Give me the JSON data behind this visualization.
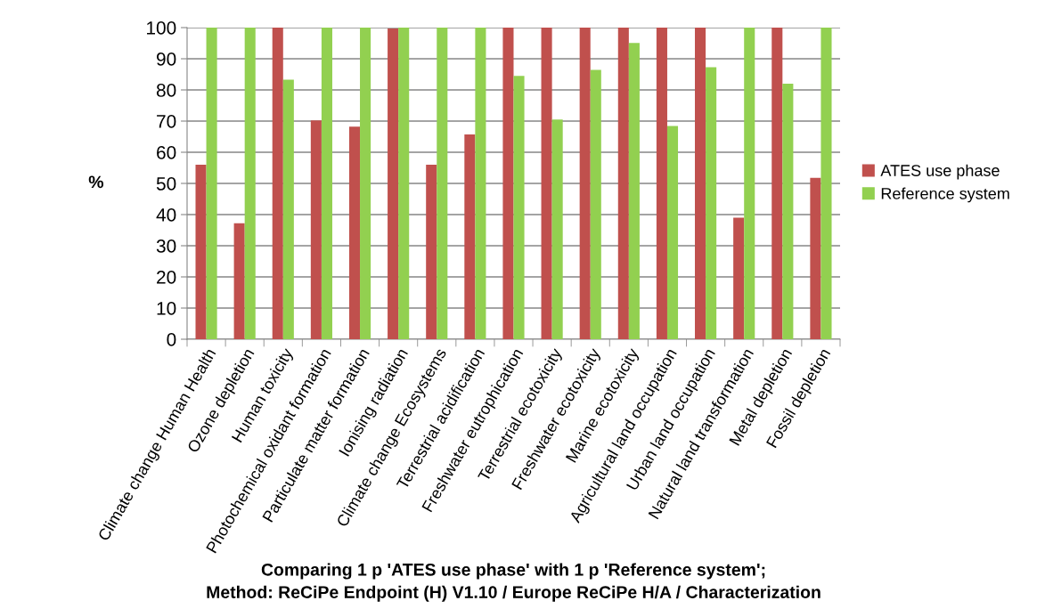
{
  "chart_data": {
    "type": "bar",
    "xlabel": "Comparing 1 p 'ATES use phase' with 1 p 'Reference system';\nMethod: ReCiPe Endpoint (H) V1.10 / Europe ReCiPe H/A / Characterization",
    "ylabel": "%",
    "categories": [
      "Climate change Human Health",
      "Ozone depletion",
      "Human toxicity",
      "Photochemical oxidant formation",
      "Particulate matter formation",
      "Ionising radiation",
      "Climate change Ecosystems",
      "Terrestrial acidification",
      "Freshwater eutrophication",
      "Terrestrial ecotoxicity",
      "Freshwater ecotoxicity",
      "Marine ecotoxicity",
      "Agricultural land occupation",
      "Urban land occupation",
      "Natural land transformation",
      "Metal depletion",
      "Fossil depletion"
    ],
    "series": [
      {
        "name": "ATES use phase",
        "color": "#c0504d",
        "values": [
          56,
          37.2,
          100,
          70.2,
          68.2,
          99.7,
          56,
          65.7,
          100,
          100,
          100,
          100,
          100,
          100,
          39,
          100,
          51.8
        ]
      },
      {
        "name": "Reference system",
        "color": "#92d050",
        "values": [
          100,
          100,
          83.3,
          100,
          100,
          100,
          100,
          100,
          84.5,
          70.5,
          86.4,
          95.1,
          68.4,
          87.3,
          100,
          82,
          100
        ]
      }
    ],
    "ylim": [
      0,
      100
    ],
    "yticks": [
      0,
      10,
      20,
      30,
      40,
      50,
      60,
      70,
      80,
      90,
      100
    ],
    "grid": "y",
    "legend": "right"
  }
}
